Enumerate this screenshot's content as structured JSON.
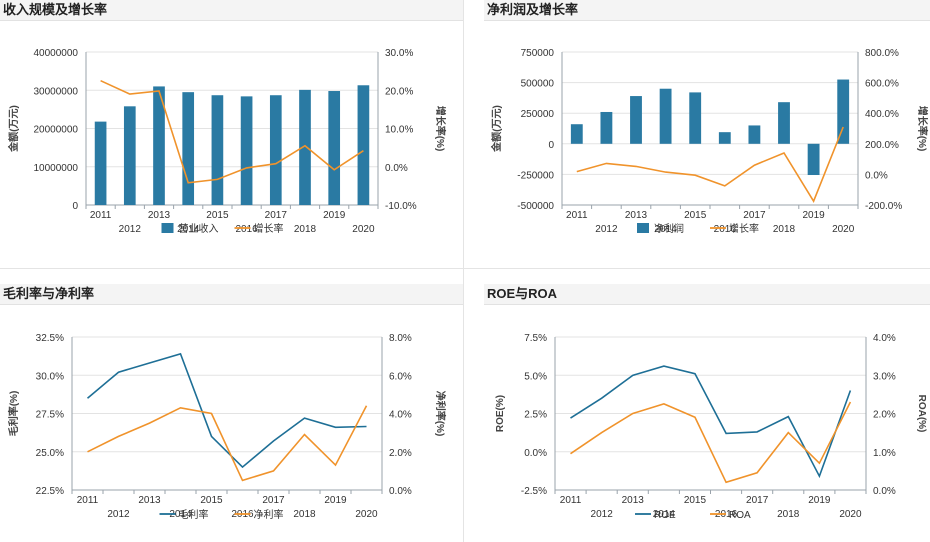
{
  "panels": {
    "tl_title": "收入规模及增长率",
    "tr_title": "净利润及增长率",
    "bl_title": "毛利率与净利率",
    "br_title": "ROE与ROA"
  },
  "chart_data": [
    {
      "id": "revenue",
      "type": "bar+line",
      "categories": [
        "2011",
        "2012",
        "2013",
        "2014",
        "2015",
        "2016",
        "2017",
        "2018",
        "2019",
        "2020"
      ],
      "ylabel": "金额(万元)",
      "y2label": "增长率(%)",
      "yticks": [
        "0",
        "10000000",
        "20000000",
        "30000000",
        "40000000"
      ],
      "y2ticks": [
        "-10.0%",
        "0.0%",
        "10.0%",
        "20.0%",
        "30.0%"
      ],
      "ylim": [
        0,
        40000000
      ],
      "y2lim": [
        -10,
        30
      ],
      "series": [
        {
          "name": "营业收入",
          "kind": "bar",
          "color": "#2a7aa3",
          "values": [
            21800000,
            25800000,
            31000000,
            29500000,
            28700000,
            28400000,
            28700000,
            30100000,
            29800000,
            31300000
          ]
        },
        {
          "name": "增长率",
          "kind": "line",
          "color": "#f0932b",
          "values": [
            22.5,
            19.0,
            19.8,
            -4.2,
            -3.3,
            -0.3,
            0.8,
            5.5,
            -0.8,
            4.2
          ]
        }
      ]
    },
    {
      "id": "profit",
      "type": "bar+line",
      "categories": [
        "2011",
        "2012",
        "2013",
        "2014",
        "2015",
        "2016",
        "2017",
        "2018",
        "2019",
        "2020"
      ],
      "ylabel": "金额(万元)",
      "y2label": "增长率(%)",
      "yticks": [
        "-500000",
        "-250000",
        "0",
        "250000",
        "500000",
        "750000"
      ],
      "y2ticks": [
        "-200.0%",
        "0.0%",
        "200.0%",
        "400.0%",
        "600.0%",
        "800.0%"
      ],
      "ylim": [
        -500000,
        750000
      ],
      "y2lim": [
        -200,
        800
      ],
      "series": [
        {
          "name": "净利润",
          "kind": "bar",
          "color": "#2a7aa3",
          "values": [
            160000,
            260000,
            390000,
            450000,
            420000,
            95000,
            150000,
            340000,
            -255000,
            525000
          ]
        },
        {
          "name": "增长率",
          "kind": "line",
          "color": "#f0932b",
          "values": [
            18,
            72,
            52,
            15,
            -5,
            -75,
            60,
            140,
            -175,
            310
          ]
        }
      ]
    },
    {
      "id": "margins",
      "type": "line",
      "categories": [
        "2011",
        "2012",
        "2013",
        "2014",
        "2015",
        "2016",
        "2017",
        "2018",
        "2019",
        "2020"
      ],
      "ylabel": "毛利率(%)",
      "y2label": "净利率(%)",
      "yticks": [
        "22.5%",
        "25.0%",
        "27.5%",
        "30.0%",
        "32.5%"
      ],
      "y2ticks": [
        "0.0%",
        "2.0%",
        "4.0%",
        "6.0%",
        "8.0%"
      ],
      "ylim": [
        22.5,
        32.5
      ],
      "y2lim": [
        0,
        8
      ],
      "series": [
        {
          "name": "毛利率",
          "axis": "left",
          "color": "#1e6f96",
          "values": [
            28.5,
            30.2,
            30.8,
            31.4,
            26.0,
            24.0,
            25.7,
            27.2,
            26.6,
            26.65
          ]
        },
        {
          "name": "净利率",
          "axis": "right",
          "color": "#f0932b",
          "values": [
            2.0,
            2.8,
            3.5,
            4.3,
            4.0,
            0.5,
            1.0,
            2.9,
            1.3,
            4.4
          ]
        }
      ]
    },
    {
      "id": "roe_roa",
      "type": "line",
      "categories": [
        "2011",
        "2012",
        "2013",
        "2014",
        "2015",
        "2016",
        "2017",
        "2018",
        "2019",
        "2020"
      ],
      "ylabel": "ROE(%)",
      "y2label": "ROA(%)",
      "yticks": [
        "-2.5%",
        "0.0%",
        "2.5%",
        "5.0%",
        "7.5%"
      ],
      "y2ticks": [
        "0.0%",
        "1.0%",
        "2.0%",
        "3.0%",
        "4.0%"
      ],
      "ylim": [
        -2.5,
        7.5
      ],
      "y2lim": [
        0,
        4
      ],
      "series": [
        {
          "name": "ROE",
          "axis": "left",
          "color": "#1e6f96",
          "values": [
            2.2,
            3.5,
            5.0,
            5.6,
            5.1,
            1.2,
            1.3,
            2.3,
            -1.6,
            4.0
          ]
        },
        {
          "name": "ROA",
          "axis": "right",
          "color": "#f0932b",
          "values": [
            0.95,
            1.5,
            2.0,
            2.25,
            1.9,
            0.2,
            0.45,
            1.5,
            0.7,
            2.3
          ]
        }
      ]
    }
  ]
}
